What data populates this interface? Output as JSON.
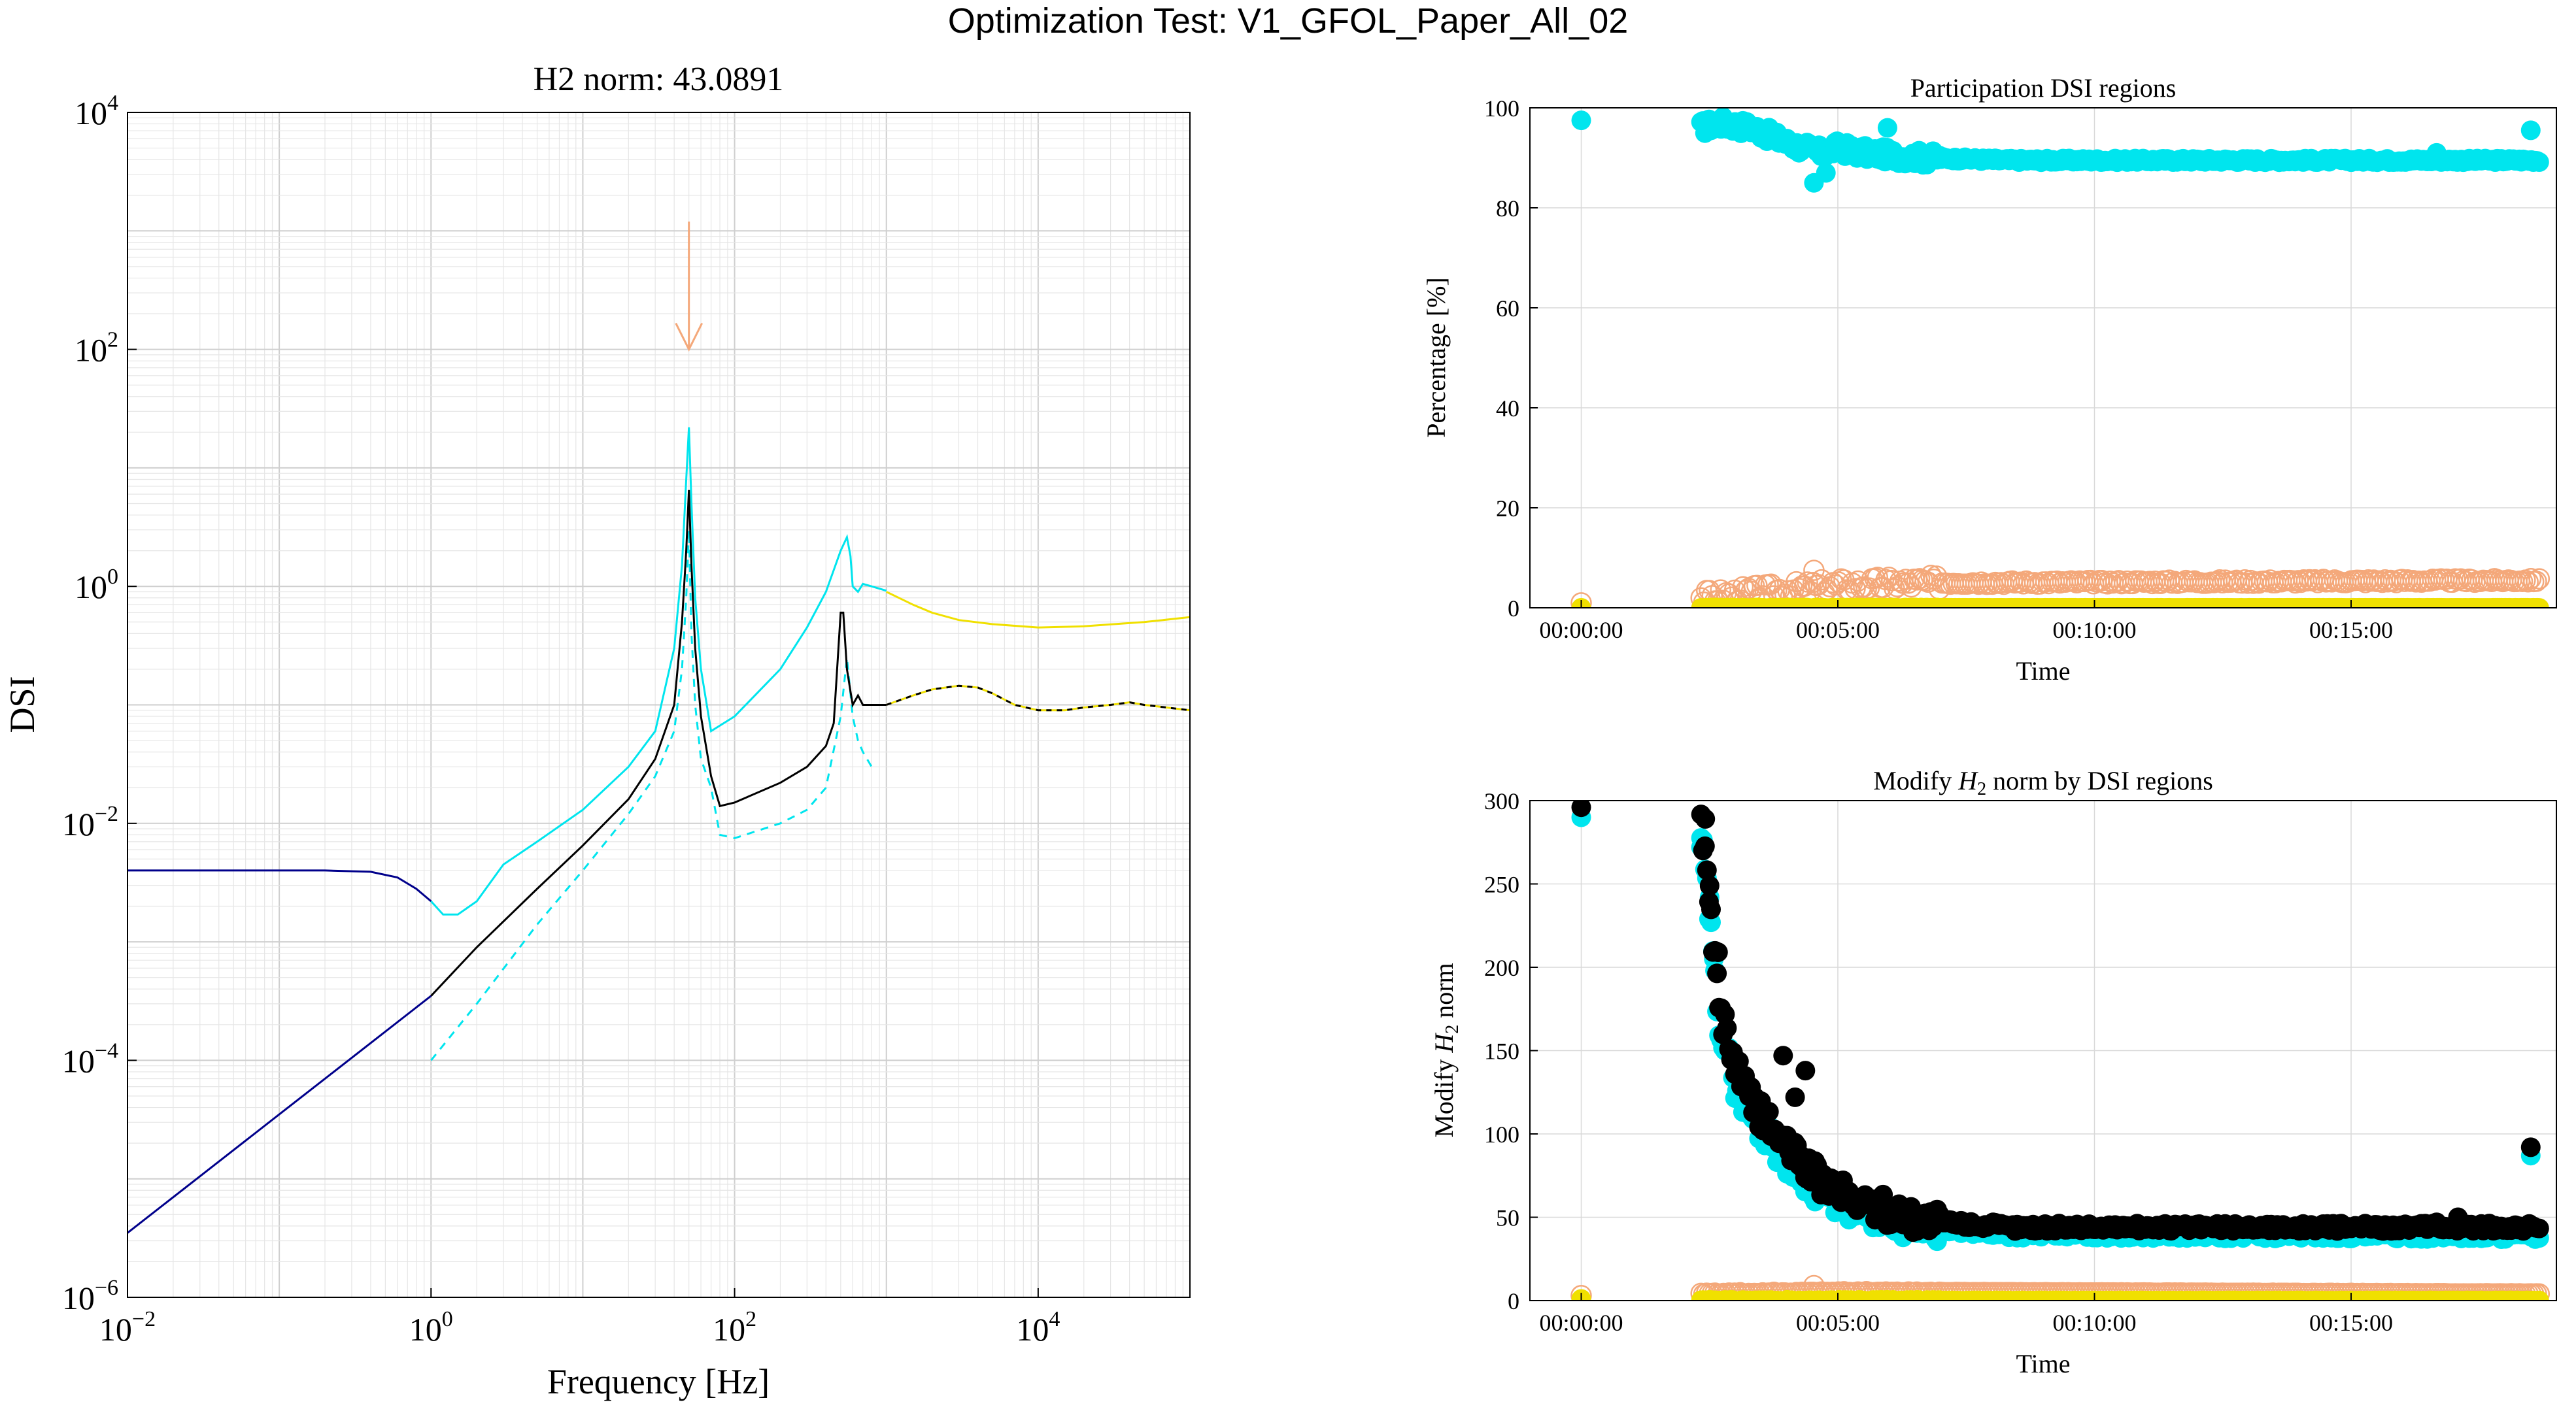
{
  "figure_title": "Optimization Test: V1_GFOL_Paper_All_02",
  "colors": {
    "cyan": "#00e5ee",
    "navy": "#00008b",
    "black": "#000000",
    "yellow": "#f0e000",
    "peach": "#f4a87a",
    "grid": "#d9d9d9"
  },
  "chart_data": [
    {
      "type": "line",
      "title": "H2 norm: 43.0891",
      "xlabel": "Frequency [Hz]",
      "ylabel": "DSI",
      "xscale": "log",
      "yscale": "log",
      "xlim": [
        0.01,
        100000
      ],
      "ylim": [
        1e-06,
        10000
      ],
      "grid": true,
      "xticks": [
        {
          "v": 0.01,
          "base": "10",
          "exp": "−2"
        },
        {
          "v": 1,
          "base": "10",
          "exp": "0"
        },
        {
          "v": 100,
          "base": "10",
          "exp": "2"
        },
        {
          "v": 10000,
          "base": "10",
          "exp": "4"
        }
      ],
      "yticks": [
        {
          "v": 1e-06,
          "base": "10",
          "exp": "−6"
        },
        {
          "v": 0.0001,
          "base": "10",
          "exp": "−4"
        },
        {
          "v": 0.01,
          "base": "10",
          "exp": "−2"
        },
        {
          "v": 1,
          "base": "10",
          "exp": "0"
        },
        {
          "v": 100,
          "base": "10",
          "exp": "2"
        },
        {
          "v": 10000,
          "base": "10",
          "exp": "4"
        }
      ],
      "annotations": [
        {
          "type": "arrow",
          "x": 50,
          "y_from": 1200,
          "y_to": 100,
          "color": "#f4a87a"
        }
      ],
      "series": [
        {
          "color": "#00008b",
          "style": "solid",
          "x": [
            0.01,
            0.05,
            0.1,
            0.2,
            0.4,
            0.6,
            0.8,
            1.0
          ],
          "y": [
            0.004,
            0.004,
            0.004,
            0.004,
            0.0039,
            0.0035,
            0.0028,
            0.0022
          ]
        },
        {
          "color": "#00008b",
          "style": "solid",
          "x": [
            0.01,
            0.1,
            1.0
          ],
          "y": [
            3.5e-06,
            3.5e-05,
            0.00035
          ]
        },
        {
          "color": "#00e5ee",
          "style": "solid",
          "x": [
            1.0,
            1.2,
            1.5,
            2.0,
            3.0,
            5.0,
            10,
            20,
            30,
            40,
            45,
            48,
            50,
            52,
            55,
            60,
            70,
            100,
            200,
            300,
            400,
            500,
            550,
            580,
            600,
            650,
            700,
            800,
            1000
          ],
          "y": [
            0.0022,
            0.0017,
            0.0017,
            0.0022,
            0.0045,
            0.007,
            0.013,
            0.03,
            0.06,
            0.3,
            1.5,
            8,
            22,
            5,
            0.8,
            0.2,
            0.06,
            0.08,
            0.2,
            0.45,
            0.9,
            2.0,
            2.6,
            1.8,
            1.0,
            0.9,
            1.05,
            1.0,
            0.92
          ]
        },
        {
          "color": "#00e5ee",
          "style": "dashed",
          "x": [
            1.0,
            2,
            5,
            10,
            20,
            30,
            40,
            45,
            48,
            50,
            52,
            55,
            60,
            70,
            80,
            100,
            200,
            300,
            400,
            500,
            550,
            600,
            650,
            700,
            800
          ],
          "y": [
            0.0001,
            0.0003,
            0.0014,
            0.004,
            0.012,
            0.025,
            0.06,
            0.2,
            0.8,
            3.0,
            0.4,
            0.1,
            0.035,
            0.02,
            0.008,
            0.0075,
            0.01,
            0.013,
            0.02,
            0.08,
            0.25,
            0.08,
            0.05,
            0.04,
            0.03
          ]
        },
        {
          "color": "#000000",
          "style": "solid",
          "x": [
            1.0,
            2,
            5,
            10,
            20,
            30,
            40,
            45,
            48,
            50,
            52,
            55,
            60,
            70,
            80,
            100,
            200,
            300,
            400,
            450,
            500,
            520,
            550,
            580,
            600,
            650,
            700,
            800,
            1000
          ],
          "y": [
            0.00035,
            0.0009,
            0.0028,
            0.0065,
            0.016,
            0.035,
            0.1,
            0.5,
            2.0,
            6.5,
            1.5,
            0.3,
            0.08,
            0.025,
            0.014,
            0.015,
            0.022,
            0.03,
            0.045,
            0.07,
            0.6,
            0.6,
            0.2,
            0.13,
            0.1,
            0.12,
            0.1,
            0.1,
            0.1
          ]
        },
        {
          "color": "#f0e000",
          "style": "solid",
          "x": [
            1000,
            1500,
            2000,
            3000,
            5000,
            10000,
            20000,
            50000,
            100000
          ],
          "y": [
            0.9,
            0.7,
            0.6,
            0.52,
            0.48,
            0.45,
            0.46,
            0.5,
            0.55
          ]
        },
        {
          "color": "#f0e000",
          "style": "solid-dashed-black",
          "x": [
            1000,
            1500,
            2000,
            3000,
            4000,
            5000,
            7000,
            10000,
            15000,
            20000,
            30000,
            40000,
            50000,
            70000,
            100000
          ],
          "y": [
            0.1,
            0.12,
            0.135,
            0.145,
            0.14,
            0.125,
            0.1,
            0.09,
            0.09,
            0.095,
            0.1,
            0.105,
            0.1,
            0.095,
            0.09
          ]
        }
      ]
    },
    {
      "type": "scatter",
      "title": "Participation DSI regions",
      "xlabel": "Time",
      "ylabel": "Percentage [%]",
      "xlim": [
        -60,
        1140
      ],
      "ylim": [
        0,
        100
      ],
      "grid": true,
      "xticks": [
        {
          "v": 0,
          "label": "00:00:00"
        },
        {
          "v": 300,
          "label": "00:05:00"
        },
        {
          "v": 600,
          "label": "00:10:00"
        },
        {
          "v": 900,
          "label": "00:15:00"
        }
      ],
      "yticks": [
        {
          "v": 0,
          "label": "0"
        },
        {
          "v": 20,
          "label": "20"
        },
        {
          "v": 40,
          "label": "40"
        },
        {
          "v": 60,
          "label": "60"
        },
        {
          "v": 80,
          "label": "80"
        },
        {
          "v": 100,
          "label": "100"
        }
      ],
      "series": [
        {
          "color": "#00e5ee",
          "marker": "filled",
          "profile": "participation_cyan",
          "x_start": 140,
          "x_end": 1120,
          "n": 420,
          "anchors": [
            [
              140,
              96
            ],
            [
              160,
              97
            ],
            [
              200,
              96
            ],
            [
              240,
              93
            ],
            [
              280,
              91
            ],
            [
              300,
              92
            ],
            [
              330,
              91
            ],
            [
              400,
              90
            ],
            [
              500,
              89.5
            ],
            [
              700,
              89.5
            ],
            [
              1120,
              89.5
            ]
          ],
          "extras": [
            [
              0,
              97.5
            ],
            [
              272,
              85
            ],
            [
              286,
              87
            ],
            [
              358,
              96
            ],
            [
              1110,
              95.5
            ],
            [
              1000,
              91
            ]
          ]
        },
        {
          "color": "#f4a87a",
          "marker": "open",
          "profile": "participation_peach",
          "x_start": 140,
          "x_end": 1120,
          "n": 300,
          "anchors": [
            [
              140,
              2
            ],
            [
              200,
              3
            ],
            [
              300,
              4.5
            ],
            [
              400,
              5
            ],
            [
              1120,
              5.5
            ]
          ],
          "extras": [
            [
              0,
              1
            ],
            [
              272,
              7.5
            ]
          ]
        },
        {
          "color": "#f0e000",
          "marker": "filled",
          "profile": "participation_yellow",
          "x_start": 140,
          "x_end": 1120,
          "n": 420,
          "anchors": [
            [
              140,
              0
            ],
            [
              1120,
              0
            ]
          ],
          "extras": [
            [
              0,
              0
            ]
          ]
        }
      ]
    },
    {
      "type": "scatter",
      "title_parts": [
        "Modify ",
        "H",
        "2",
        " norm by DSI regions"
      ],
      "xlabel": "Time",
      "ylabel_parts": [
        "Modify ",
        "H",
        "2",
        " norm"
      ],
      "xlim": [
        -60,
        1140
      ],
      "ylim": [
        0,
        300
      ],
      "grid": true,
      "xticks": [
        {
          "v": 0,
          "label": "00:00:00"
        },
        {
          "v": 300,
          "label": "00:05:00"
        },
        {
          "v": 600,
          "label": "00:10:00"
        },
        {
          "v": 900,
          "label": "00:15:00"
        }
      ],
      "yticks": [
        {
          "v": 0,
          "label": "0"
        },
        {
          "v": 50,
          "label": "50"
        },
        {
          "v": 100,
          "label": "100"
        },
        {
          "v": 150,
          "label": "150"
        },
        {
          "v": 200,
          "label": "200"
        },
        {
          "v": 250,
          "label": "250"
        },
        {
          "v": 300,
          "label": "300"
        }
      ],
      "series": [
        {
          "color": "#00e5ee",
          "marker": "filled",
          "profile": "h2_cyan",
          "x_start": 140,
          "x_end": 1120,
          "n": 420,
          "anchors": [
            [
              140,
              280
            ],
            [
              150,
              230
            ],
            [
              160,
              170
            ],
            [
              180,
              130
            ],
            [
              200,
              110
            ],
            [
              240,
              85
            ],
            [
              280,
              65
            ],
            [
              330,
              52
            ],
            [
              400,
              44
            ],
            [
              500,
              40
            ],
            [
              1120,
              39
            ]
          ],
          "extras": [
            [
              0,
              290
            ],
            [
              140,
              272
            ],
            [
              150,
              242
            ],
            [
              155,
              205
            ],
            [
              1110,
              87
            ]
          ]
        },
        {
          "color": "#000000",
          "marker": "filled",
          "profile": "h2_black",
          "x_start": 140,
          "x_end": 1120,
          "n": 420,
          "anchors": [
            [
              140,
              285
            ],
            [
              150,
              240
            ],
            [
              160,
              180
            ],
            [
              180,
              140
            ],
            [
              200,
              118
            ],
            [
              240,
              92
            ],
            [
              280,
              72
            ],
            [
              330,
              58
            ],
            [
              400,
              48
            ],
            [
              500,
              44
            ],
            [
              1120,
              44
            ]
          ],
          "extras": [
            [
              0,
              296
            ],
            [
              145,
              289
            ],
            [
              150,
              249
            ],
            [
              160,
              209
            ],
            [
              236,
              147
            ],
            [
              262,
              138
            ],
            [
              250,
              122
            ],
            [
              1110,
              92
            ],
            [
              1000,
              47
            ],
            [
              1025,
              50
            ]
          ]
        },
        {
          "color": "#f4a87a",
          "marker": "open",
          "profile": "h2_peach",
          "x_start": 140,
          "x_end": 1120,
          "n": 300,
          "anchors": [
            [
              140,
              4
            ],
            [
              300,
              5
            ],
            [
              1120,
              4
            ]
          ],
          "extras": [
            [
              0,
              3
            ],
            [
              272,
              9
            ]
          ]
        },
        {
          "color": "#f0e000",
          "marker": "filled",
          "profile": "h2_yellow",
          "x_start": 140,
          "x_end": 1120,
          "n": 420,
          "anchors": [
            [
              140,
              0
            ],
            [
              1120,
              0
            ]
          ],
          "extras": [
            [
              0,
              1
            ]
          ]
        }
      ]
    }
  ]
}
